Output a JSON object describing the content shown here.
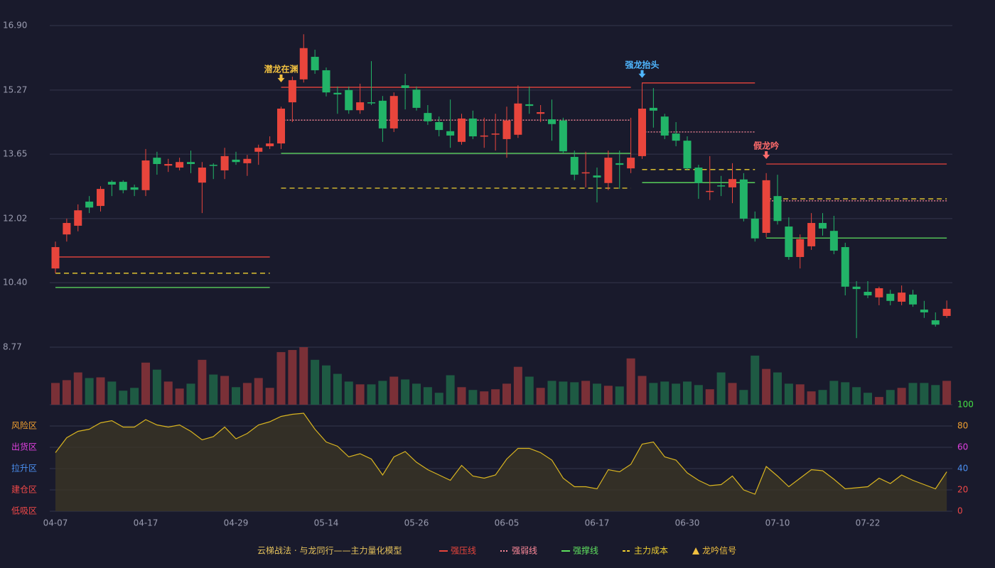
{
  "chart_data": {
    "type": "candlestick",
    "categories": [
      "04-07",
      null,
      null,
      null,
      null,
      null,
      null,
      null,
      "04-17",
      null,
      null,
      null,
      null,
      null,
      null,
      null,
      "04-29",
      null,
      null,
      null,
      null,
      null,
      null,
      null,
      "05-14",
      null,
      null,
      null,
      null,
      null,
      null,
      null,
      "05-26",
      null,
      null,
      null,
      null,
      null,
      null,
      null,
      "06-05",
      null,
      null,
      null,
      null,
      null,
      null,
      null,
      "06-17",
      null,
      null,
      null,
      null,
      null,
      null,
      null,
      "06-30",
      null,
      null,
      null,
      null,
      null,
      null,
      null,
      "07-10",
      null,
      null,
      null,
      null,
      null,
      null,
      null,
      "07-22",
      null,
      null,
      null,
      null,
      null,
      null,
      null
    ],
    "open": [
      10.76,
      11.62,
      11.84,
      12.45,
      12.34,
      12.95,
      12.95,
      12.81,
      12.74,
      13.56,
      13.36,
      13.31,
      13.45,
      12.93,
      13.38,
      13.24,
      13.51,
      13.42,
      13.71,
      13.85,
      13.92,
      14.96,
      15.54,
      16.11,
      15.77,
      15.2,
      15.27,
      14.76,
      14.96,
      15.0,
      14.3,
      15.39,
      15.28,
      14.69,
      14.46,
      14.23,
      13.96,
      14.55,
      14.1,
      14.15,
      14.03,
      14.14,
      14.91,
      14.67,
      14.53,
      14.5,
      13.58,
      13.17,
      13.11,
      12.92,
      13.42,
      13.29,
      13.6,
      14.82,
      14.6,
      14.17,
      13.99,
      13.31,
      12.7,
      12.86,
      12.81,
      13.01,
      12.02,
      11.66,
      12.59,
      11.82,
      11.05,
      11.32,
      11.91,
      11.71,
      11.3,
      10.3,
      10.17,
      10.03,
      10.12,
      9.92,
      10.1,
      9.72,
      9.45,
      9.56
    ],
    "close": [
      11.3,
      11.91,
      12.23,
      12.3,
      12.77,
      12.88,
      12.74,
      12.75,
      13.49,
      13.4,
      13.4,
      13.45,
      13.4,
      13.31,
      13.36,
      13.6,
      13.45,
      13.53,
      13.81,
      13.92,
      14.8,
      15.52,
      16.33,
      15.77,
      15.21,
      15.16,
      14.76,
      14.96,
      14.94,
      14.3,
      15.12,
      15.32,
      14.82,
      14.48,
      14.26,
      14.12,
      14.55,
      14.1,
      14.12,
      14.17,
      14.5,
      14.93,
      14.87,
      14.71,
      14.41,
      13.72,
      13.13,
      13.19,
      13.06,
      13.56,
      13.38,
      13.56,
      14.8,
      14.75,
      14.12,
      13.99,
      13.29,
      12.92,
      12.72,
      12.84,
      13.02,
      12.02,
      11.52,
      12.99,
      11.96,
      11.05,
      11.5,
      11.91,
      11.77,
      11.21,
      10.3,
      10.24,
      10.08,
      10.26,
      9.94,
      10.15,
      9.85,
      9.65,
      9.34,
      9.74
    ],
    "high": [
      11.44,
      12.02,
      12.38,
      12.59,
      12.84,
      12.99,
      12.99,
      12.88,
      13.78,
      13.71,
      13.53,
      13.56,
      13.74,
      13.45,
      13.42,
      13.81,
      13.71,
      13.63,
      13.89,
      14.1,
      14.85,
      15.61,
      16.68,
      16.29,
      15.84,
      15.36,
      15.36,
      15.43,
      16.0,
      15.12,
      15.21,
      15.68,
      15.36,
      14.89,
      14.6,
      15.03,
      14.67,
      14.75,
      14.57,
      14.67,
      14.85,
      15.39,
      15.36,
      14.89,
      15.03,
      14.57,
      13.74,
      13.71,
      13.31,
      13.74,
      13.74,
      14.57,
      15.46,
      15.32,
      14.67,
      14.46,
      14.1,
      13.38,
      13.6,
      13.1,
      13.42,
      13.17,
      12.2,
      13.17,
      13.13,
      12.05,
      11.62,
      12.16,
      12.16,
      12.09,
      11.41,
      10.44,
      10.44,
      10.3,
      10.22,
      10.33,
      10.22,
      9.94,
      9.65,
      9.95
    ],
    "low": [
      10.64,
      11.44,
      11.7,
      12.16,
      12.2,
      12.59,
      12.66,
      12.59,
      12.59,
      13.13,
      13.2,
      13.24,
      13.17,
      12.16,
      13.02,
      13.02,
      13.38,
      13.1,
      13.38,
      13.78,
      13.78,
      14.46,
      15.46,
      15.68,
      15.11,
      14.67,
      14.67,
      14.67,
      14.89,
      13.96,
      14.21,
      14.78,
      14.75,
      14.39,
      14.1,
      13.81,
      13.89,
      14.03,
      13.81,
      13.74,
      13.56,
      14.06,
      14.67,
      14.46,
      13.99,
      13.67,
      12.99,
      12.81,
      12.43,
      12.74,
      12.77,
      13.17,
      13.53,
      14.32,
      14.03,
      13.85,
      13.24,
      12.52,
      12.49,
      12.59,
      12.41,
      11.95,
      11.44,
      11.55,
      11.87,
      10.98,
      10.76,
      11.23,
      11.59,
      11.12,
      10.08,
      9.0,
      10.01,
      9.83,
      9.83,
      9.83,
      9.79,
      9.51,
      9.29,
      9.51
    ],
    "up_color": "#e8453c",
    "down_color": "#22b468",
    "ylim": [
      8.77,
      16.9
    ],
    "yticks": [
      {
        "value": 8.77,
        "label": "8.77"
      },
      {
        "value": 10.4,
        "label": "10.40"
      },
      12.02,
      13.65,
      15.27,
      {
        "value": 16.9,
        "label": "16.90"
      }
    ],
    "grid": true,
    "series": [
      {
        "name": "强压线",
        "color": "#e8453c",
        "style": "solid",
        "values": [
          11.05,
          11.05,
          11.05,
          11.05,
          11.05,
          11.05,
          11.05,
          11.05,
          11.05,
          11.05,
          11.05,
          11.05,
          11.05,
          11.05,
          11.05,
          11.05,
          11.05,
          11.05,
          11.05,
          11.05,
          15.34,
          15.34,
          15.34,
          15.34,
          15.34,
          15.34,
          15.34,
          15.34,
          15.34,
          15.34,
          15.34,
          15.34,
          15.34,
          15.34,
          15.34,
          15.34,
          15.34,
          15.34,
          15.34,
          15.34,
          15.34,
          15.34,
          15.34,
          15.34,
          15.34,
          15.34,
          15.34,
          15.34,
          15.34,
          15.34,
          15.34,
          15.34,
          15.45,
          15.45,
          15.45,
          15.45,
          15.45,
          15.45,
          15.45,
          15.45,
          15.45,
          15.45,
          15.45,
          13.4,
          13.4,
          13.4,
          13.4,
          13.4,
          13.4,
          13.4,
          13.4,
          13.4,
          13.4,
          13.4,
          13.4,
          13.4,
          13.4,
          13.4,
          13.4,
          13.4
        ]
      },
      {
        "name": "强弱线",
        "color": "#ff8a9a",
        "style": "dotted",
        "values": [
          null,
          null,
          null,
          null,
          null,
          null,
          null,
          null,
          null,
          null,
          null,
          null,
          null,
          null,
          null,
          null,
          null,
          null,
          null,
          null,
          14.51,
          14.51,
          14.51,
          14.51,
          14.51,
          14.51,
          14.51,
          14.51,
          14.51,
          14.51,
          14.51,
          14.51,
          14.51,
          14.51,
          14.51,
          14.51,
          14.51,
          14.51,
          14.51,
          14.51,
          14.51,
          14.51,
          14.51,
          14.51,
          14.51,
          14.51,
          14.51,
          14.51,
          14.51,
          14.51,
          14.51,
          14.51,
          14.21,
          14.21,
          14.21,
          14.21,
          14.21,
          14.21,
          14.21,
          14.21,
          14.21,
          14.21,
          14.21,
          12.47,
          12.47,
          12.47,
          12.47,
          12.47,
          12.47,
          12.47,
          12.47,
          12.47,
          12.47,
          12.47,
          12.47,
          12.47,
          12.47,
          12.47,
          12.47,
          12.47
        ]
      },
      {
        "name": "强撑线",
        "color": "#5ee05e",
        "style": "solid",
        "values": [
          10.28,
          10.28,
          10.28,
          10.28,
          10.28,
          10.28,
          10.28,
          10.28,
          10.28,
          10.28,
          10.28,
          10.28,
          10.28,
          10.28,
          10.28,
          10.28,
          10.28,
          10.28,
          10.28,
          10.28,
          13.67,
          13.67,
          13.67,
          13.67,
          13.67,
          13.67,
          13.67,
          13.67,
          13.67,
          13.67,
          13.67,
          13.67,
          13.67,
          13.67,
          13.67,
          13.67,
          13.67,
          13.67,
          13.67,
          13.67,
          13.67,
          13.67,
          13.67,
          13.67,
          13.67,
          13.67,
          13.67,
          13.67,
          13.67,
          13.67,
          13.67,
          13.67,
          12.93,
          12.93,
          12.93,
          12.93,
          12.93,
          12.93,
          12.93,
          12.93,
          12.93,
          12.93,
          12.93,
          11.53,
          11.53,
          11.53,
          11.53,
          11.53,
          11.53,
          11.53,
          11.53,
          11.53,
          11.53,
          11.53,
          11.53,
          11.53,
          11.53,
          11.53,
          11.53,
          11.53
        ]
      },
      {
        "name": "主力成本",
        "color": "#f0d030",
        "style": "dashed",
        "values": [
          10.64,
          10.64,
          10.64,
          10.64,
          10.64,
          10.64,
          10.64,
          10.64,
          10.64,
          10.64,
          10.64,
          10.64,
          10.64,
          10.64,
          10.64,
          10.64,
          10.64,
          10.64,
          10.64,
          10.64,
          12.79,
          12.79,
          12.79,
          12.79,
          12.79,
          12.79,
          12.79,
          12.79,
          12.79,
          12.79,
          12.79,
          12.79,
          12.79,
          12.79,
          12.79,
          12.79,
          12.79,
          12.79,
          12.79,
          12.79,
          12.79,
          12.79,
          12.79,
          12.79,
          12.79,
          12.79,
          12.79,
          12.79,
          12.79,
          12.79,
          12.79,
          12.79,
          13.26,
          13.26,
          13.26,
          13.26,
          13.26,
          13.26,
          13.26,
          13.26,
          13.26,
          13.26,
          13.26,
          12.52,
          12.52,
          12.52,
          12.52,
          12.52,
          12.52,
          12.52,
          12.52,
          12.52,
          12.52,
          12.52,
          12.52,
          12.52,
          12.52,
          12.52,
          12.52,
          12.52
        ]
      }
    ],
    "signals": {
      "name": "龙吟信号",
      "color": "#f0c040",
      "items": [
        {
          "label": "潜龙在渊",
          "index": 20,
          "color": "#f0c040"
        },
        {
          "label": "强龙抬头",
          "index": 52,
          "color": "#4fb6ff"
        },
        {
          "label": "假龙吟",
          "index": 63,
          "color": "#ff6b6b"
        }
      ]
    },
    "volume": {
      "values": [
        31,
        35,
        46,
        38,
        39,
        33,
        20,
        24,
        60,
        50,
        33,
        23,
        30,
        64,
        43,
        41,
        25,
        31,
        38,
        24,
        75,
        78,
        82,
        64,
        56,
        44,
        33,
        29,
        29,
        34,
        40,
        36,
        30,
        25,
        17,
        42,
        25,
        21,
        19,
        22,
        30,
        54,
        40,
        24,
        34,
        33,
        32,
        34,
        30,
        27,
        26,
        66,
        41,
        31,
        33,
        30,
        33,
        28,
        22,
        46,
        31,
        21,
        70,
        51,
        46,
        30,
        29,
        19,
        21,
        34,
        32,
        25,
        17,
        11,
        21,
        24,
        31,
        31,
        28,
        34
      ],
      "ylim": [
        0,
        82
      ],
      "up_color": "#7a3037",
      "down_color": "#1e5a43"
    },
    "oscillator": {
      "values": [
        55,
        69,
        75,
        77,
        83,
        85,
        79,
        79,
        86,
        81,
        79,
        81,
        75,
        67,
        70,
        79,
        68,
        73,
        81,
        84,
        89,
        91,
        92,
        77,
        65,
        61,
        51,
        54,
        49,
        34,
        51,
        56,
        46,
        39,
        34,
        29,
        43,
        33,
        31,
        34,
        49,
        59,
        59,
        55,
        48,
        31,
        23,
        23,
        21,
        39,
        37,
        44,
        63,
        65,
        51,
        48,
        36,
        29,
        24,
        25,
        33,
        20,
        16,
        42,
        33,
        23,
        31,
        39,
        38,
        30,
        21,
        22,
        23,
        31,
        26,
        34,
        29,
        25,
        21,
        37
      ],
      "color": "#d8b420",
      "ylim": [
        0,
        100
      ],
      "yticks": [
        0,
        20,
        40,
        60,
        80,
        100
      ],
      "tick_colors": [
        "#f04848",
        "#f04848",
        "#4a8ff0",
        "#e040e0",
        "#f0a030",
        "#44e044"
      ],
      "zones": [
        {
          "value": 80,
          "label": "风险区"
        },
        {
          "value": 60,
          "label": "出货区"
        },
        {
          "value": 40,
          "label": "拉升区"
        },
        {
          "value": 20,
          "label": "建仓区"
        },
        {
          "value": 0,
          "label": "低吸区"
        }
      ],
      "zone_colors": [
        "#f0a030",
        "#e040e0",
        "#4a8ff0",
        "#f04848",
        "#f04848"
      ]
    },
    "legend_title": "云梯战法 · 与龙同行——主力量化模型"
  }
}
